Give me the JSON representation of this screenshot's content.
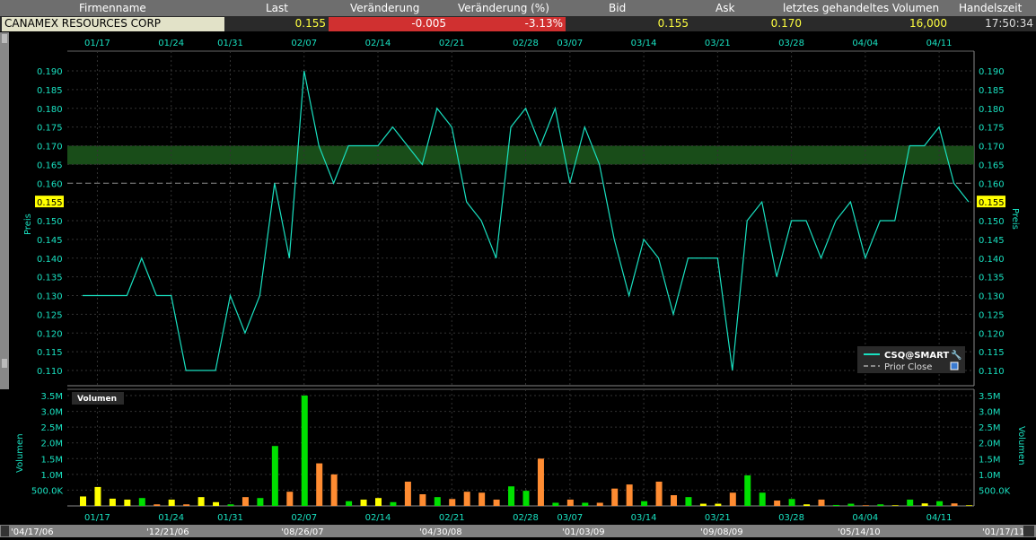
{
  "header": {
    "columns": [
      "Firmenname",
      "Last",
      "Veränderung",
      "Veränderung (%)",
      "Bid",
      "Ask",
      "letztes gehandeltes Volumen",
      "Handelszeit"
    ]
  },
  "quote": {
    "name": "CANAMEX RESOURCES CORP",
    "last": "0.155",
    "change": "-0.005",
    "change_pct": "-3.13%",
    "bid": "0.155",
    "ask": "0.170",
    "volume": "16,000",
    "time": "17:50:34"
  },
  "colors": {
    "price_line": "#19e0c0",
    "up": "#00e000",
    "down": "#ff8c32",
    "flat": "#ffff00",
    "negative_bg": "#d03030",
    "band": "#1a6a1a"
  },
  "chart_data": [
    {
      "type": "line",
      "ylabel": "Preis",
      "ylim": [
        0.11,
        0.19
      ],
      "yticks": [
        "0.190",
        "0.185",
        "0.180",
        "0.175",
        "0.170",
        "0.165",
        "0.160",
        "0.155",
        "0.150",
        "0.145",
        "0.140",
        "0.135",
        "0.130",
        "0.125",
        "0.120",
        "0.115",
        "0.110"
      ],
      "xticks": [
        "01/17",
        "01/24",
        "01/31",
        "02/07",
        "02/14",
        "02/21",
        "02/28",
        "03/07",
        "03/14",
        "03/21",
        "03/28",
        "04/04",
        "04/11"
      ],
      "dates": [
        "01/14",
        "01/17",
        "01/18",
        "01/19",
        "01/20",
        "01/21",
        "01/24",
        "01/25",
        "01/26",
        "01/27",
        "01/31",
        "02/01",
        "02/02",
        "02/03",
        "02/04",
        "02/07",
        "02/08",
        "02/09",
        "02/10",
        "02/11",
        "02/14",
        "02/15",
        "02/16",
        "02/17",
        "02/18",
        "02/21",
        "02/22",
        "02/23",
        "02/24",
        "02/25",
        "02/28",
        "03/01",
        "03/03",
        "03/07",
        "03/08",
        "03/09",
        "03/10",
        "03/11",
        "03/14",
        "03/15",
        "03/16",
        "03/17",
        "03/18",
        "03/21",
        "03/22",
        "03/23",
        "03/24",
        "03/25",
        "03/28",
        "03/29",
        "03/30",
        "03/31",
        "04/01",
        "04/04",
        "04/05",
        "04/06",
        "04/07",
        "04/08",
        "04/11",
        "04/12",
        "04/13"
      ],
      "series": [
        {
          "name": "CSQ@SMART",
          "values": [
            0.13,
            0.13,
            0.13,
            0.13,
            0.14,
            0.13,
            0.13,
            0.11,
            0.11,
            0.11,
            0.13,
            0.12,
            0.13,
            0.16,
            0.14,
            0.19,
            0.17,
            0.16,
            0.17,
            0.17,
            0.17,
            0.175,
            0.17,
            0.165,
            0.18,
            0.175,
            0.155,
            0.15,
            0.14,
            0.175,
            0.18,
            0.17,
            0.18,
            0.16,
            0.175,
            0.165,
            0.145,
            0.13,
            0.145,
            0.14,
            0.125,
            0.14,
            0.14,
            0.14,
            0.11,
            0.15,
            0.155,
            0.135,
            0.15,
            0.15,
            0.14,
            0.15,
            0.155,
            0.14,
            0.15,
            0.15,
            0.17,
            0.17,
            0.175,
            0.16,
            0.155
          ]
        }
      ],
      "prior_close": {
        "label": "Prior Close",
        "value": 0.16,
        "checked": true
      },
      "band": [
        0.165,
        0.17
      ],
      "current_label": "0.155",
      "legend_placement": "bottom-right"
    },
    {
      "type": "bar",
      "title": "Volumen",
      "ylabel": "Volumen",
      "ylim": [
        0,
        3.5
      ],
      "yticks": [
        "3.5M",
        "3.0M",
        "2.5M",
        "2.0M",
        "1.5M",
        "1.0M",
        "500.0K"
      ],
      "values_millions": [
        0.3,
        0.6,
        0.23,
        0.2,
        0.25,
        0.05,
        0.2,
        0.05,
        0.28,
        0.12,
        0.05,
        0.28,
        0.25,
        1.9,
        0.45,
        3.5,
        1.35,
        1.0,
        0.15,
        0.2,
        0.25,
        0.12,
        0.77,
        0.37,
        0.28,
        0.22,
        0.45,
        0.42,
        0.2,
        0.62,
        0.48,
        1.5,
        0.1,
        0.2,
        0.1,
        0.1,
        0.55,
        0.68,
        0.15,
        0.77,
        0.34,
        0.28,
        0.07,
        0.07,
        0.42,
        0.97,
        0.42,
        0.17,
        0.22,
        0.05,
        0.2,
        0.03,
        0.07,
        0.02,
        0.05,
        0.02,
        0.2,
        0.08,
        0.15,
        0.08,
        0.02
      ],
      "bar_colors": "YYYYGOYOYYGOGGOGOOGYYGOOGOOOOGGOGOGOOOGOOGYYOGGOGYOGGOGYGYGOY"
    }
  ],
  "navigator": {
    "labels": [
      "'04/17/06",
      "'12/21/06",
      "'08/26/07",
      "'04/30/08",
      "'01/03/09",
      "'09/08/09",
      "'05/14/10",
      "'01/17/11"
    ]
  }
}
